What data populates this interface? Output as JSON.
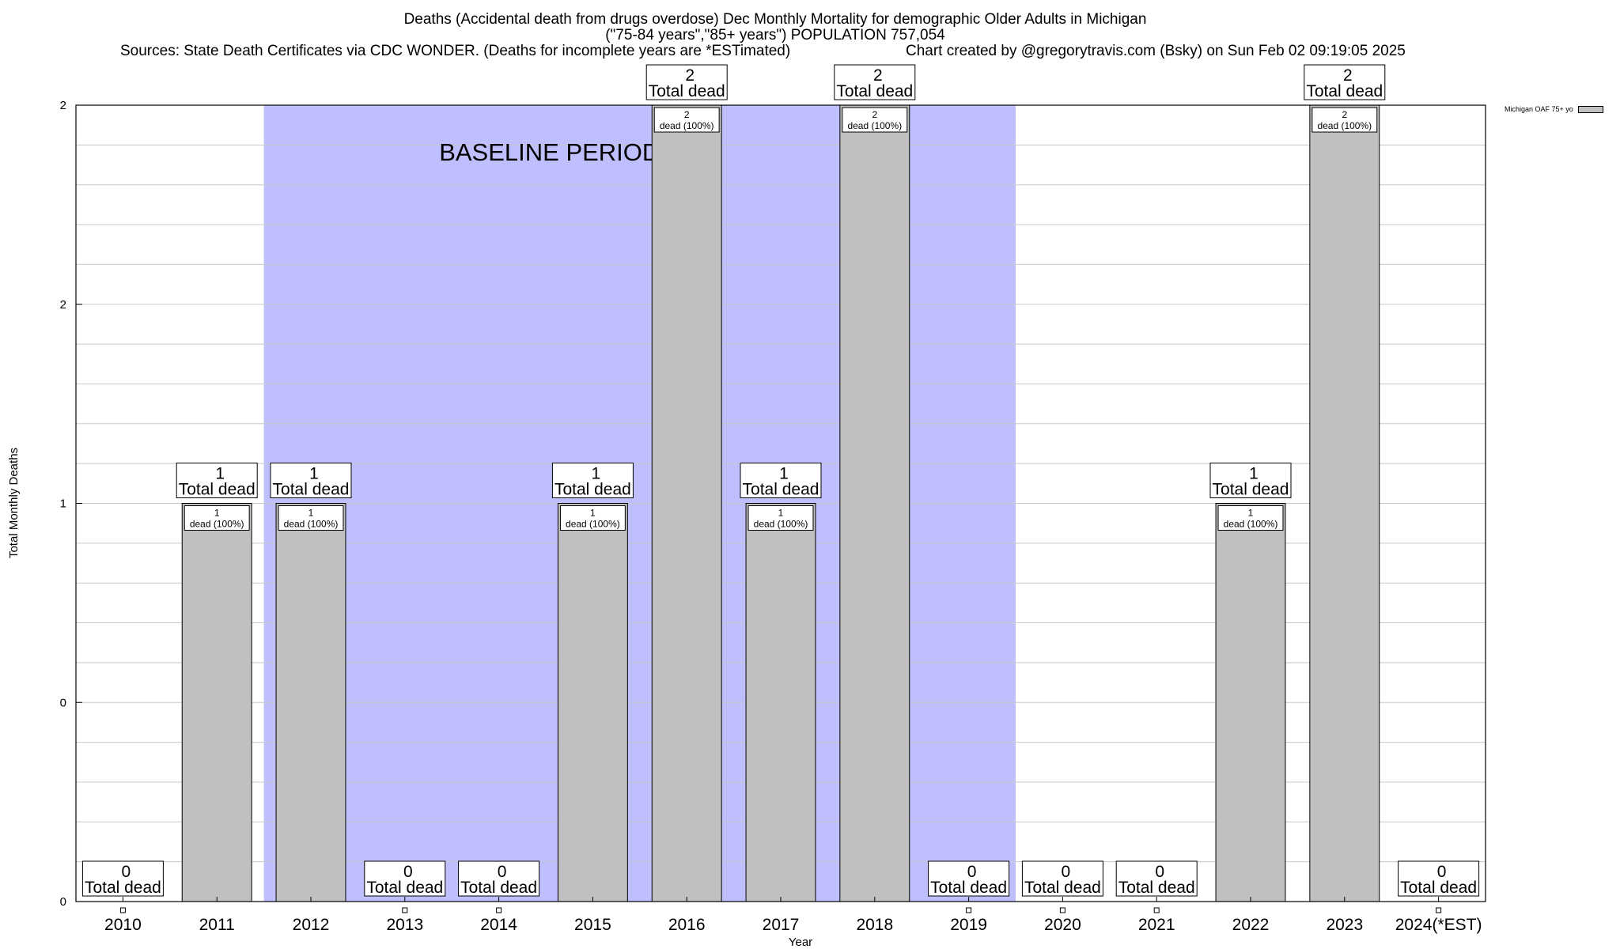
{
  "header": {
    "title_line1": "Deaths (Accidental death from drugs overdose) Dec Monthly Mortality for demographic Older Adults in Michigan",
    "title_line2": "(\"75-84 years\",\"85+ years\") POPULATION 757,054",
    "sources": "Sources: State Death Certificates via CDC WONDER. (Deaths for incomplete years are *ESTimated)",
    "credit": "Chart created by @gregorytravis.com (Bsky) on Sun Feb 02 09:19:05 2025"
  },
  "legend": {
    "label": "Michigan OAF 75+ yo"
  },
  "chart_data": {
    "type": "bar",
    "xlabel": "Year",
    "ylabel": "Total Monthly Deaths",
    "ylim": [
      0,
      2
    ],
    "y_tick_labels": [
      "0",
      "0",
      "1",
      "2",
      "2"
    ],
    "grid": true,
    "legend_position": "top-right",
    "baseline_period": {
      "label": "BASELINE PERIOD",
      "from": "2012",
      "to": "2019",
      "color": "#bfbffe"
    },
    "bar_color": "#c0c0c0",
    "categories": [
      "2010",
      "2011",
      "2012",
      "2013",
      "2014",
      "2015",
      "2016",
      "2017",
      "2018",
      "2019",
      "2020",
      "2021",
      "2022",
      "2023",
      "2024(*EST)"
    ],
    "series": [
      {
        "name": "Michigan OAF 75+ yo",
        "values": [
          0,
          1,
          1,
          0,
          0,
          1,
          2,
          1,
          2,
          0,
          0,
          0,
          1,
          2,
          0
        ]
      }
    ],
    "top_label_suffix": "Total dead",
    "inner_label_suffix": "dead (100%)"
  }
}
